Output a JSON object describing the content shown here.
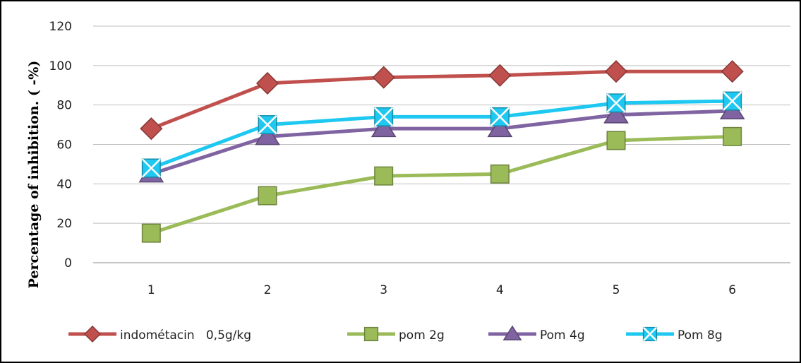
{
  "chart_data": {
    "type": "line",
    "title": "",
    "xlabel": "",
    "ylabel": "Percentage of  inhibition.  ( -%)",
    "categories": [
      "1",
      "2",
      "3",
      "4",
      "5",
      "6"
    ],
    "ylim": [
      0,
      120
    ],
    "yticks": [
      "0",
      "20",
      "40",
      "60",
      "80",
      "100",
      "120"
    ],
    "grid": true,
    "legend_position": "bottom",
    "series": [
      {
        "name": "indométacin   0,5g/kg",
        "values": [
          68,
          91,
          94,
          95,
          97,
          97
        ],
        "color": "#c0504d",
        "marker": "diamond"
      },
      {
        "name": "pom 2g",
        "values": [
          15,
          34,
          44,
          45,
          62,
          64
        ],
        "color": "#9bbb59",
        "marker": "square"
      },
      {
        "name": "Pom 4g",
        "values": [
          45,
          64,
          68,
          68,
          75,
          77
        ],
        "color": "#8064a2",
        "marker": "triangle"
      },
      {
        "name": "Pom 8g",
        "values": [
          48,
          70,
          74,
          74,
          81,
          82
        ],
        "color": "#1ec8f0",
        "marker": "x-square"
      }
    ]
  }
}
